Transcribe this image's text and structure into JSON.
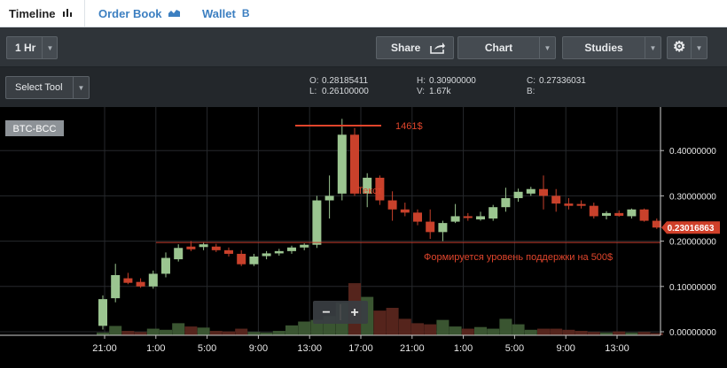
{
  "tabs": [
    {
      "label": "Timeline",
      "icon": "bar-chart-icon"
    },
    {
      "label": "Order Book",
      "icon": "area-chart-icon"
    },
    {
      "label": "Wallet",
      "icon": "bitcoin-icon",
      "glyph": "B"
    }
  ],
  "toolbar": {
    "interval": "1 Hr",
    "share": "Share",
    "chart": "Chart",
    "studies": "Studies",
    "select_tool": "Select Tool"
  },
  "ohlc": {
    "o_label": "O:",
    "o": "0.28185411",
    "l_label": "L:",
    "l": "0.26100000",
    "h_label": "H:",
    "h": "0.30900000",
    "v_label": "V:",
    "v": "1.67k",
    "c_label": "C:",
    "c": "0.27336031",
    "b_label": "B:",
    "b": ""
  },
  "chart_data": {
    "type": "candlestick",
    "symbol": "BTC-BCC",
    "last_price_label": "0.23016863",
    "ylim": [
      0,
      0.49
    ],
    "y_ticks": [
      0.0,
      0.1,
      0.2,
      0.3,
      0.4
    ],
    "y_tick_labels": [
      "0.00000000",
      "0.10000000",
      "0.20000000",
      "0.30000000",
      "0.40000000"
    ],
    "x_tick_labels": [
      "21:00",
      "1:00",
      "5:00",
      "9:00",
      "13:00",
      "17:00",
      "21:00",
      "1:00",
      "5:00",
      "9:00",
      "13:00"
    ],
    "up_color": "#9bc590",
    "down_color": "#c9412b",
    "candles": [
      {
        "o": 0.013,
        "h": 0.08,
        "l": 0.005,
        "c": 0.072
      },
      {
        "o": 0.074,
        "h": 0.15,
        "l": 0.065,
        "c": 0.125
      },
      {
        "o": 0.118,
        "h": 0.13,
        "l": 0.105,
        "c": 0.108
      },
      {
        "o": 0.11,
        "h": 0.118,
        "l": 0.097,
        "c": 0.1
      },
      {
        "o": 0.1,
        "h": 0.135,
        "l": 0.095,
        "c": 0.128
      },
      {
        "o": 0.128,
        "h": 0.175,
        "l": 0.12,
        "c": 0.163
      },
      {
        "o": 0.16,
        "h": 0.193,
        "l": 0.155,
        "c": 0.185
      },
      {
        "o": 0.188,
        "h": 0.2,
        "l": 0.178,
        "c": 0.182
      },
      {
        "o": 0.187,
        "h": 0.198,
        "l": 0.18,
        "c": 0.193
      },
      {
        "o": 0.188,
        "h": 0.194,
        "l": 0.176,
        "c": 0.18
      },
      {
        "o": 0.18,
        "h": 0.186,
        "l": 0.166,
        "c": 0.172
      },
      {
        "o": 0.172,
        "h": 0.18,
        "l": 0.145,
        "c": 0.149
      },
      {
        "o": 0.149,
        "h": 0.172,
        "l": 0.145,
        "c": 0.166
      },
      {
        "o": 0.167,
        "h": 0.178,
        "l": 0.16,
        "c": 0.173
      },
      {
        "o": 0.173,
        "h": 0.183,
        "l": 0.168,
        "c": 0.178
      },
      {
        "o": 0.178,
        "h": 0.19,
        "l": 0.172,
        "c": 0.186
      },
      {
        "o": 0.186,
        "h": 0.195,
        "l": 0.18,
        "c": 0.192
      },
      {
        "o": 0.192,
        "h": 0.3,
        "l": 0.185,
        "c": 0.29
      },
      {
        "o": 0.29,
        "h": 0.345,
        "l": 0.25,
        "c": 0.3
      },
      {
        "o": 0.305,
        "h": 0.47,
        "l": 0.29,
        "c": 0.435
      },
      {
        "o": 0.435,
        "h": 0.45,
        "l": 0.3,
        "c": 0.305
      },
      {
        "o": 0.305,
        "h": 0.35,
        "l": 0.275,
        "c": 0.34
      },
      {
        "o": 0.34,
        "h": 0.345,
        "l": 0.28,
        "c": 0.29
      },
      {
        "o": 0.29,
        "h": 0.31,
        "l": 0.245,
        "c": 0.27
      },
      {
        "o": 0.27,
        "h": 0.285,
        "l": 0.255,
        "c": 0.263
      },
      {
        "o": 0.263,
        "h": 0.27,
        "l": 0.235,
        "c": 0.243
      },
      {
        "o": 0.243,
        "h": 0.27,
        "l": 0.205,
        "c": 0.22
      },
      {
        "o": 0.22,
        "h": 0.245,
        "l": 0.2,
        "c": 0.24
      },
      {
        "o": 0.243,
        "h": 0.282,
        "l": 0.24,
        "c": 0.255
      },
      {
        "o": 0.255,
        "h": 0.262,
        "l": 0.245,
        "c": 0.253
      },
      {
        "o": 0.248,
        "h": 0.265,
        "l": 0.245,
        "c": 0.255
      },
      {
        "o": 0.25,
        "h": 0.28,
        "l": 0.245,
        "c": 0.275
      },
      {
        "o": 0.275,
        "h": 0.318,
        "l": 0.265,
        "c": 0.295
      },
      {
        "o": 0.295,
        "h": 0.316,
        "l": 0.287,
        "c": 0.309
      },
      {
        "o": 0.305,
        "h": 0.32,
        "l": 0.3,
        "c": 0.315
      },
      {
        "o": 0.315,
        "h": 0.345,
        "l": 0.27,
        "c": 0.3
      },
      {
        "o": 0.3,
        "h": 0.315,
        "l": 0.265,
        "c": 0.283
      },
      {
        "o": 0.283,
        "h": 0.295,
        "l": 0.27,
        "c": 0.278
      },
      {
        "o": 0.282,
        "h": 0.29,
        "l": 0.272,
        "c": 0.278
      },
      {
        "o": 0.278,
        "h": 0.285,
        "l": 0.25,
        "c": 0.255
      },
      {
        "o": 0.256,
        "h": 0.266,
        "l": 0.248,
        "c": 0.262
      },
      {
        "o": 0.262,
        "h": 0.268,
        "l": 0.254,
        "c": 0.256
      },
      {
        "o": 0.255,
        "h": 0.272,
        "l": 0.25,
        "c": 0.27
      },
      {
        "o": 0.27,
        "h": 0.272,
        "l": 0.243,
        "c": 0.245
      },
      {
        "o": 0.245,
        "h": 0.25,
        "l": 0.227,
        "c": 0.23
      }
    ],
    "volume_levels": [
      0.05,
      0.17,
      0.08,
      0.06,
      0.12,
      0.1,
      0.22,
      0.16,
      0.14,
      0.08,
      0.07,
      0.12,
      0.06,
      0.05,
      0.08,
      0.18,
      0.25,
      0.28,
      0.35,
      0.6,
      0.95,
      0.7,
      0.45,
      0.5,
      0.3,
      0.22,
      0.2,
      0.28,
      0.16,
      0.12,
      0.15,
      0.12,
      0.3,
      0.2,
      0.1,
      0.12,
      0.12,
      0.1,
      0.08,
      0.06,
      0.05,
      0.07,
      0.05,
      0.06,
      0.04
    ],
    "annotations": {
      "top_line_label": "1461$",
      "top_line_price": 0.455,
      "text_label": "Текст",
      "support_label": "Формируется уровень поддержки на 500$",
      "support_price": 0.197
    }
  },
  "zoom": {
    "minus": "−",
    "plus": "+"
  }
}
